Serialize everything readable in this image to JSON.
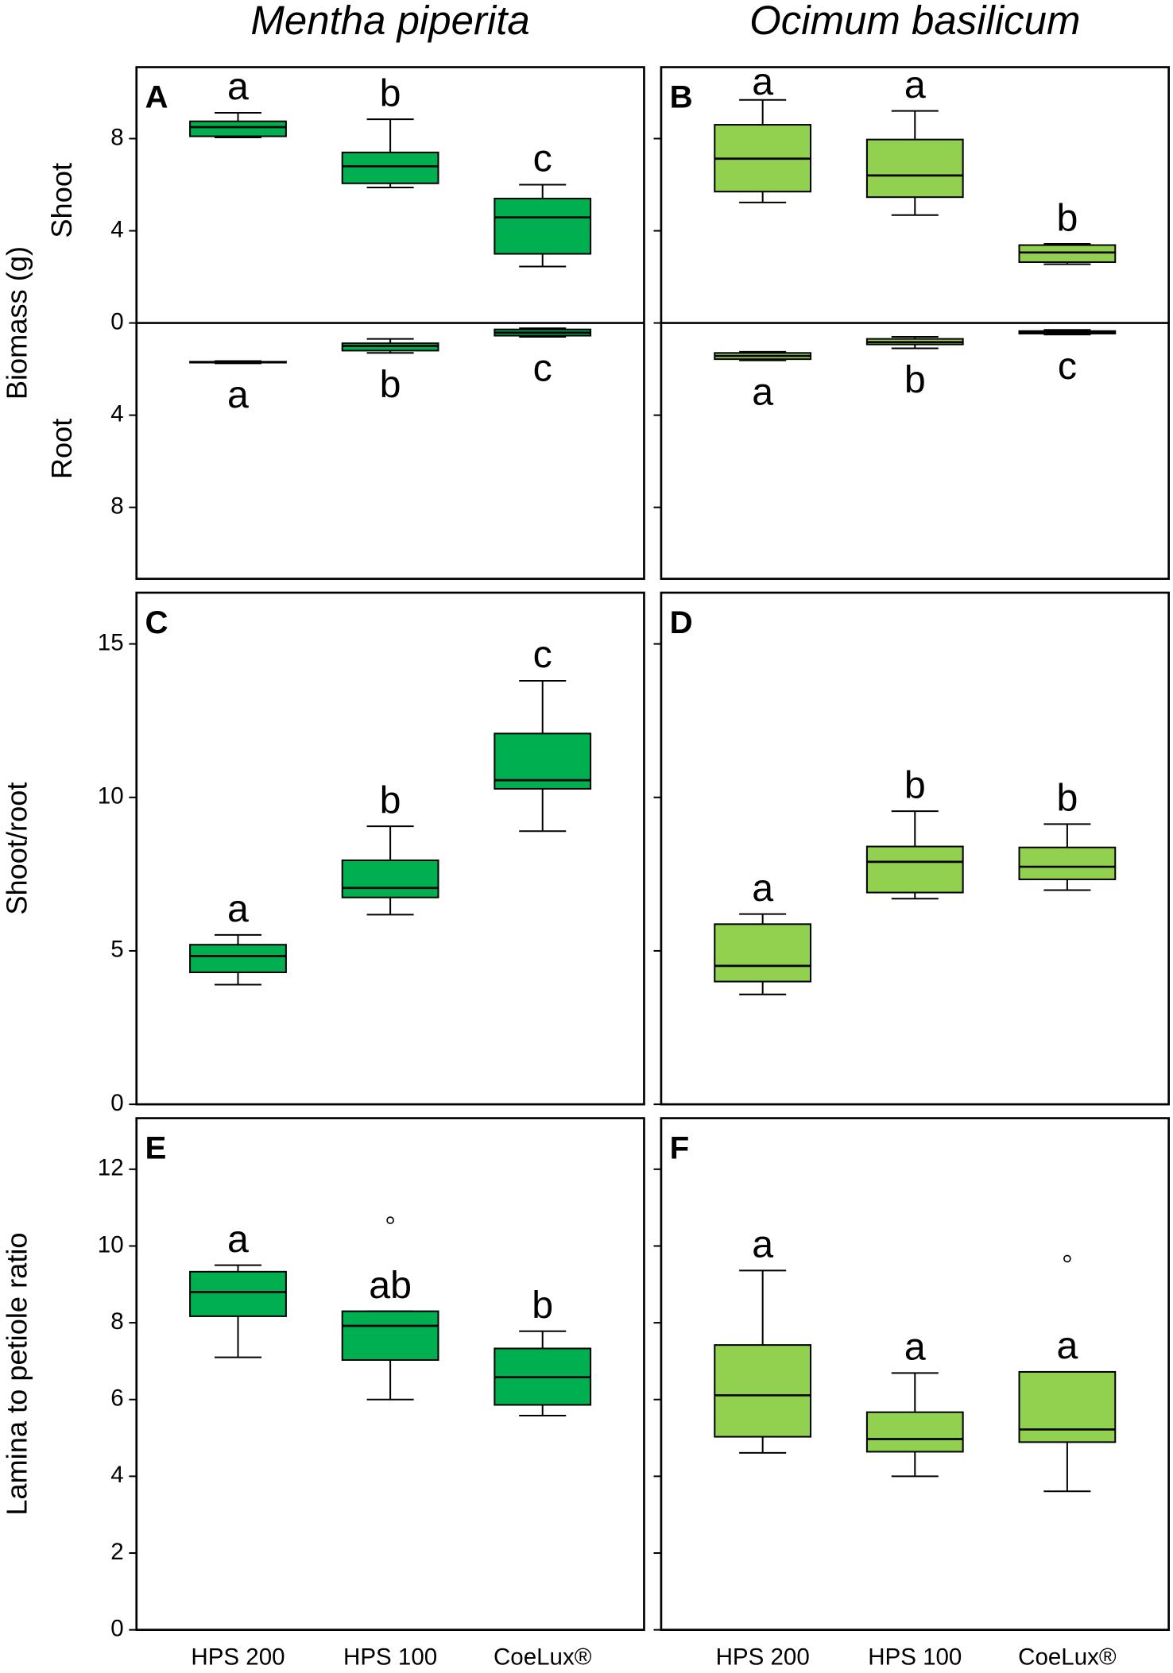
{
  "chart_data": [
    {
      "type": "box",
      "panel": "A",
      "title": "Mentha piperita",
      "y_label": "Biomass (g)",
      "y_sublabels": [
        "Shoot",
        "Root"
      ],
      "color": "#00b050",
      "ylim": [
        -11.1,
        11.1
      ],
      "yticks": [
        8,
        4,
        0,
        {
          "value": -4,
          "label": "4"
        },
        {
          "value": -8,
          "label": "8"
        }
      ],
      "ytick_labels": true,
      "series": [
        {
          "letter_side": "above",
          "letters": [
            "a",
            "b",
            "c"
          ],
          "boxes": [
            {
              "whislo": 8.05,
              "q1": 8.1,
              "med": 8.5,
              "q3": 8.75,
              "whishi": 9.12,
              "fliers": []
            },
            {
              "whislo": 5.88,
              "q1": 6.06,
              "med": 6.8,
              "q3": 7.4,
              "whishi": 8.84,
              "fliers": []
            },
            {
              "whislo": 2.45,
              "q1": 3.0,
              "med": 4.58,
              "q3": 5.4,
              "whishi": 6.0,
              "fliers": []
            }
          ]
        },
        {
          "letter_side": "below",
          "letters": [
            "a",
            "b",
            "c"
          ],
          "boxes": [
            {
              "whislo": -1.75,
              "q1": -1.72,
              "med": -1.7,
              "q3": -1.68,
              "whishi": -1.65,
              "fliers": []
            },
            {
              "whislo": -1.3,
              "q1": -1.2,
              "med": -1.0,
              "q3": -0.88,
              "whishi": -0.69,
              "fliers": []
            },
            {
              "whislo": -0.6,
              "q1": -0.55,
              "med": -0.42,
              "q3": -0.28,
              "whishi": -0.23,
              "fliers": []
            }
          ]
        }
      ]
    },
    {
      "type": "box",
      "panel": "B",
      "title": "Ocimum basilicum",
      "color": "#92d050",
      "ylim": [
        -11.1,
        11.1
      ],
      "yticks": [
        8,
        4,
        0,
        -4,
        -8
      ],
      "ytick_labels": false,
      "series": [
        {
          "letter_side": "above",
          "letters": [
            "a",
            "a",
            "b"
          ],
          "boxes": [
            {
              "whislo": 5.23,
              "q1": 5.7,
              "med": 7.13,
              "q3": 8.6,
              "whishi": 9.68,
              "fliers": []
            },
            {
              "whislo": 4.68,
              "q1": 5.46,
              "med": 6.4,
              "q3": 7.96,
              "whishi": 9.2,
              "fliers": []
            },
            {
              "whislo": 2.55,
              "q1": 2.64,
              "med": 3.06,
              "q3": 3.38,
              "whishi": 3.43,
              "fliers": []
            }
          ]
        },
        {
          "letter_side": "below",
          "letters": [
            "a",
            "b",
            "c"
          ],
          "boxes": [
            {
              "whislo": -1.62,
              "q1": -1.57,
              "med": -1.43,
              "q3": -1.3,
              "whishi": -1.25,
              "fliers": []
            },
            {
              "whislo": -1.1,
              "q1": -0.93,
              "med": -0.83,
              "q3": -0.69,
              "whishi": -0.6,
              "fliers": []
            },
            {
              "whislo": -0.5,
              "q1": -0.46,
              "med": -0.42,
              "q3": -0.35,
              "whishi": -0.3,
              "fliers": []
            }
          ]
        }
      ]
    },
    {
      "type": "box",
      "panel": "C",
      "y_label": "Shoot/root",
      "color": "#00b050",
      "ylim": [
        0,
        16.67
      ],
      "yticks": [
        0,
        5,
        10,
        15
      ],
      "ytick_labels": true,
      "series": [
        {
          "letter_side": "above",
          "letters": [
            "a",
            "b",
            "c"
          ],
          "boxes": [
            {
              "whislo": 3.9,
              "q1": 4.3,
              "med": 4.83,
              "q3": 5.2,
              "whishi": 5.52,
              "fliers": []
            },
            {
              "whislo": 6.18,
              "q1": 6.74,
              "med": 7.05,
              "q3": 7.95,
              "whishi": 9.06,
              "fliers": []
            },
            {
              "whislo": 8.9,
              "q1": 10.28,
              "med": 10.56,
              "q3": 12.08,
              "whishi": 13.8,
              "fliers": []
            }
          ]
        }
      ]
    },
    {
      "type": "box",
      "panel": "D",
      "color": "#92d050",
      "ylim": [
        0,
        16.67
      ],
      "yticks": [
        0,
        5,
        10,
        15
      ],
      "ytick_labels": false,
      "series": [
        {
          "letter_side": "above",
          "letters": [
            "a",
            "b",
            "b"
          ],
          "boxes": [
            {
              "whislo": 3.58,
              "q1": 4.0,
              "med": 4.51,
              "q3": 5.87,
              "whishi": 6.2,
              "fliers": []
            },
            {
              "whislo": 6.7,
              "q1": 6.9,
              "med": 7.9,
              "q3": 8.4,
              "whishi": 9.55,
              "fliers": []
            },
            {
              "whislo": 6.98,
              "q1": 7.33,
              "med": 7.74,
              "q3": 8.37,
              "whishi": 9.13,
              "fliers": []
            }
          ]
        }
      ]
    },
    {
      "type": "box",
      "panel": "E",
      "y_label": "Lamina to petiole ratio",
      "color": "#00b050",
      "categories": [
        "HPS 200",
        "HPS 100",
        "CoeLux®"
      ],
      "ylim": [
        0,
        13.33
      ],
      "yticks": [
        0,
        2,
        4,
        6,
        8,
        10,
        12
      ],
      "ytick_labels": true,
      "series": [
        {
          "letter_side": "above",
          "letters": [
            "a",
            "ab",
            "b"
          ],
          "boxes": [
            {
              "whislo": 7.1,
              "q1": 8.17,
              "med": 8.8,
              "q3": 9.33,
              "whishi": 9.5,
              "fliers": []
            },
            {
              "whislo": 6.0,
              "q1": 7.03,
              "med": 7.92,
              "q3": 8.3,
              "whishi": 8.3,
              "fliers": [
                10.67
              ]
            },
            {
              "whislo": 5.58,
              "q1": 5.86,
              "med": 6.58,
              "q3": 7.33,
              "whishi": 7.78,
              "fliers": []
            }
          ]
        }
      ]
    },
    {
      "type": "box",
      "panel": "F",
      "color": "#92d050",
      "categories": [
        "HPS 200",
        "HPS 100",
        "CoeLux®"
      ],
      "ylim": [
        0,
        13.33
      ],
      "yticks": [
        0,
        2,
        4,
        6,
        8,
        10,
        12
      ],
      "ytick_labels": false,
      "series": [
        {
          "letter_side": "above",
          "letters": [
            "a",
            "a",
            "a"
          ],
          "boxes": [
            {
              "whislo": 4.61,
              "q1": 5.03,
              "med": 6.11,
              "q3": 7.42,
              "whishi": 9.36,
              "fliers": []
            },
            {
              "whislo": 4.0,
              "q1": 4.64,
              "med": 4.97,
              "q3": 5.67,
              "whishi": 6.69,
              "fliers": []
            },
            {
              "whislo": 3.61,
              "q1": 4.89,
              "med": 5.22,
              "q3": 6.72,
              "whishi": 6.72,
              "fliers": [
                9.67
              ]
            }
          ]
        }
      ]
    }
  ]
}
